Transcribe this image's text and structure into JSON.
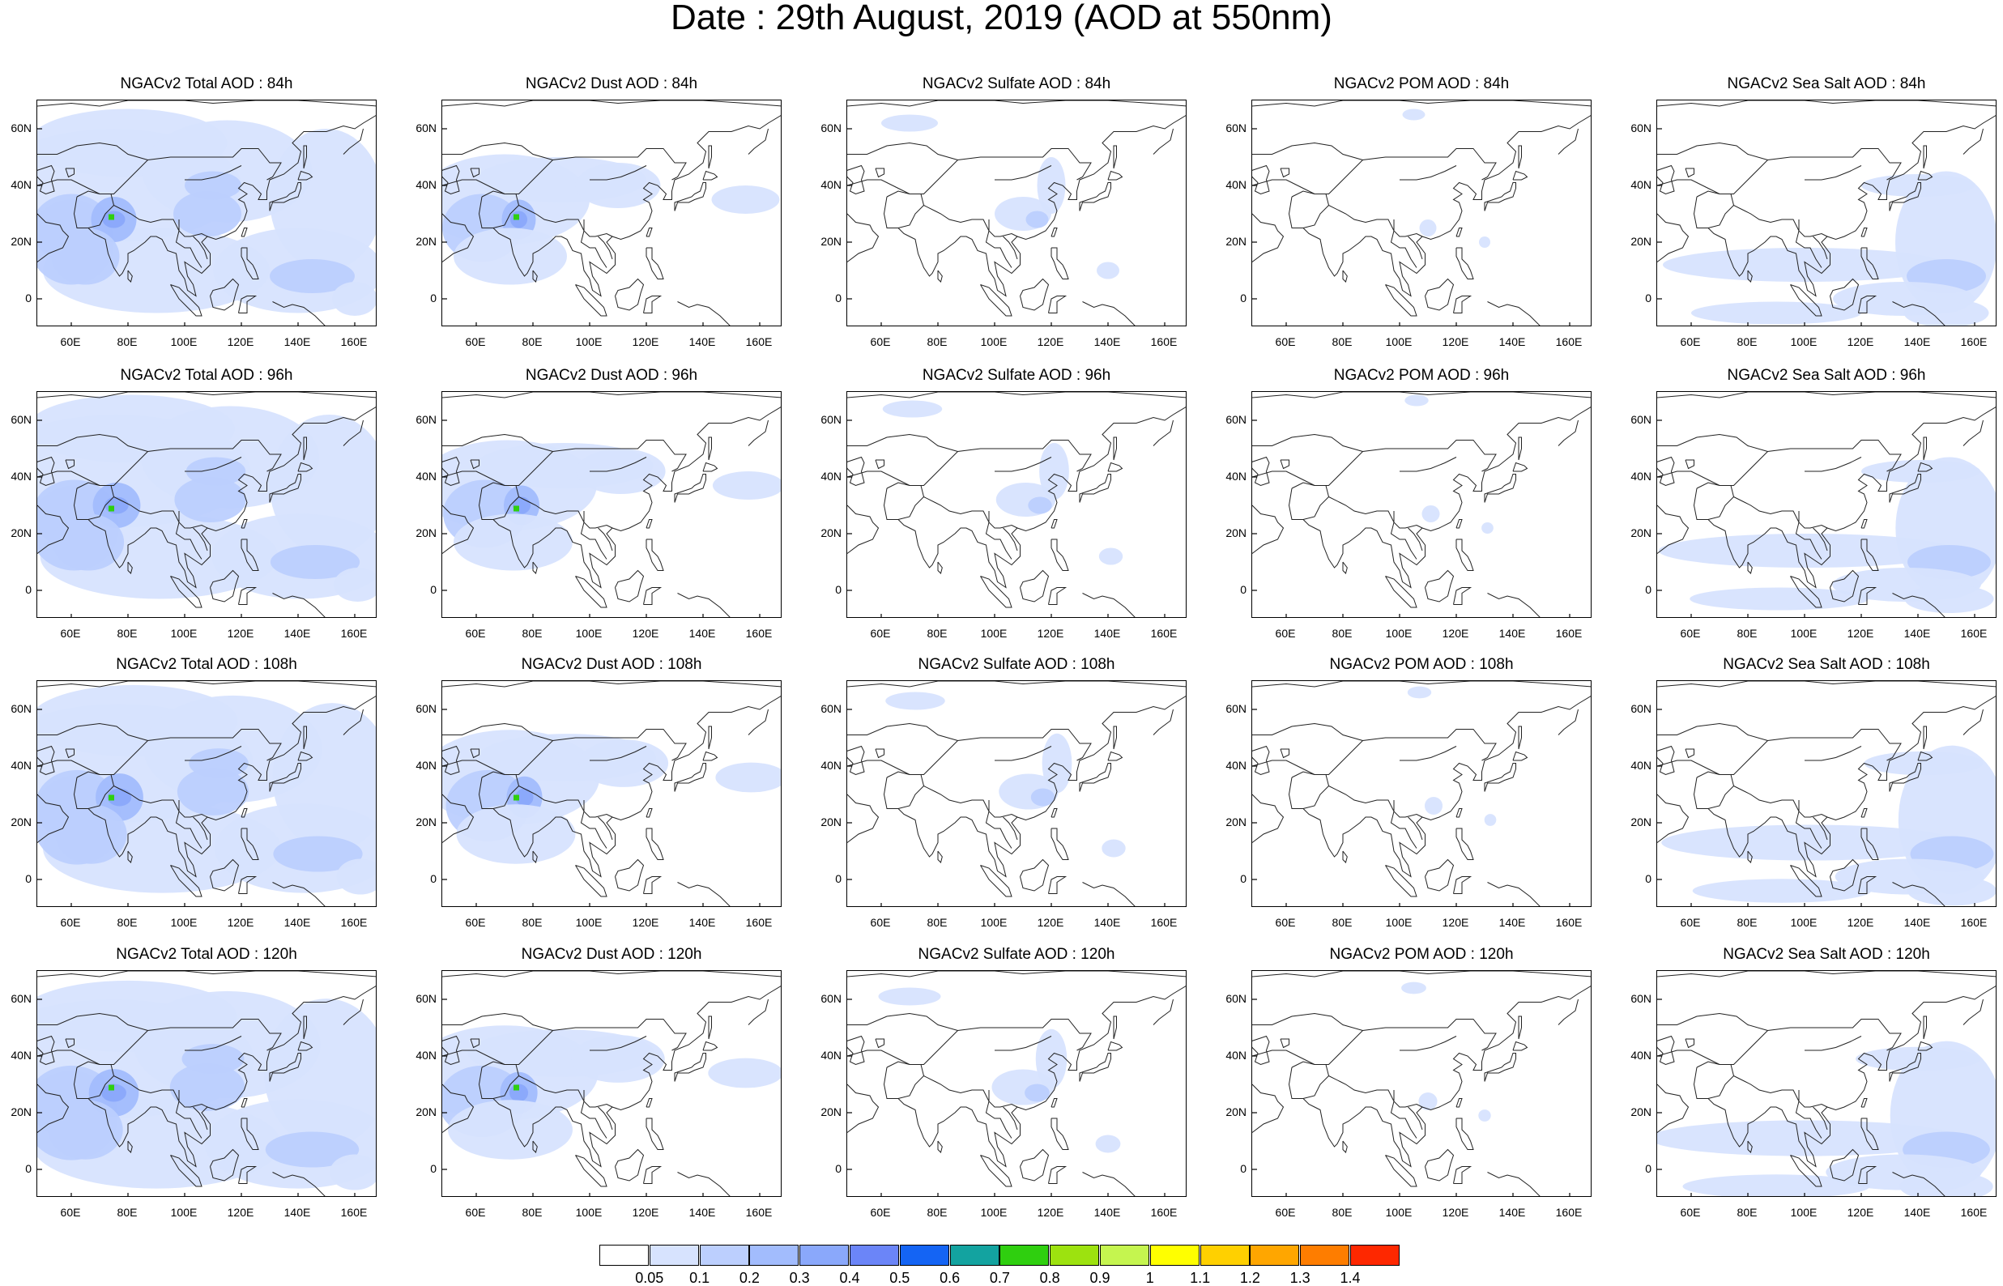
{
  "title": "Date : 29th August, 2019 (AOD at 550nm)",
  "panels": [
    {
      "title": "NGACv2 Total AOD : 84h",
      "species": "total"
    },
    {
      "title": "NGACv2 Dust AOD : 84h",
      "species": "dust"
    },
    {
      "title": "NGACv2 Sulfate AOD : 84h",
      "species": "sulfate"
    },
    {
      "title": "NGACv2 POM AOD : 84h",
      "species": "pom"
    },
    {
      "title": "NGACv2 Sea Salt AOD : 84h",
      "species": "seasalt"
    },
    {
      "title": "NGACv2 Total AOD : 96h",
      "species": "total"
    },
    {
      "title": "NGACv2 Dust AOD : 96h",
      "species": "dust"
    },
    {
      "title": "NGACv2 Sulfate AOD : 96h",
      "species": "sulfate"
    },
    {
      "title": "NGACv2 POM AOD : 96h",
      "species": "pom"
    },
    {
      "title": "NGACv2 Sea Salt AOD : 96h",
      "species": "seasalt"
    },
    {
      "title": "NGACv2 Total AOD : 108h",
      "species": "total"
    },
    {
      "title": "NGACv2 Dust AOD : 108h",
      "species": "dust"
    },
    {
      "title": "NGACv2 Sulfate AOD : 108h",
      "species": "sulfate"
    },
    {
      "title": "NGACv2 POM AOD : 108h",
      "species": "pom"
    },
    {
      "title": "NGACv2 Sea Salt AOD : 108h",
      "species": "seasalt"
    },
    {
      "title": "NGACv2 Total AOD : 120h",
      "species": "total"
    },
    {
      "title": "NGACv2 Dust AOD : 120h",
      "species": "dust"
    },
    {
      "title": "NGACv2 Sulfate AOD : 120h",
      "species": "sulfate"
    },
    {
      "title": "NGACv2 POM AOD : 120h",
      "species": "pom"
    },
    {
      "title": "NGACv2 Sea Salt  AOD : 120h",
      "species": "seasalt"
    }
  ],
  "lat_ticks": [
    "60N",
    "40N",
    "20N",
    "0"
  ],
  "lon_ticks": [
    "60E",
    "80E",
    "100E",
    "120E",
    "140E",
    "160E"
  ],
  "colorbar": {
    "labels": [
      "0.05",
      "0.1",
      "0.2",
      "0.3",
      "0.4",
      "0.5",
      "0.6",
      "0.7",
      "0.8",
      "0.9",
      "1",
      "1.1",
      "1.2",
      "1.3",
      "1.4"
    ],
    "colors": [
      "#ffffff",
      "#d7e3fe",
      "#bccffe",
      "#a2bcfd",
      "#8aa8fb",
      "#6b85f8",
      "#1464f4",
      "#13a3a0",
      "#2fcf0f",
      "#9de20f",
      "#c5f54f",
      "#ffff00",
      "#ffd000",
      "#ffa600",
      "#fe7d00",
      "#fe2800"
    ]
  },
  "colors": {
    "aod_light": "#d7e3fe",
    "aod_mid": "#bccffe",
    "aod_high": "#a2bcfd",
    "aod_higher": "#8aa8fb",
    "hotspot": "#2fcf0f"
  }
}
